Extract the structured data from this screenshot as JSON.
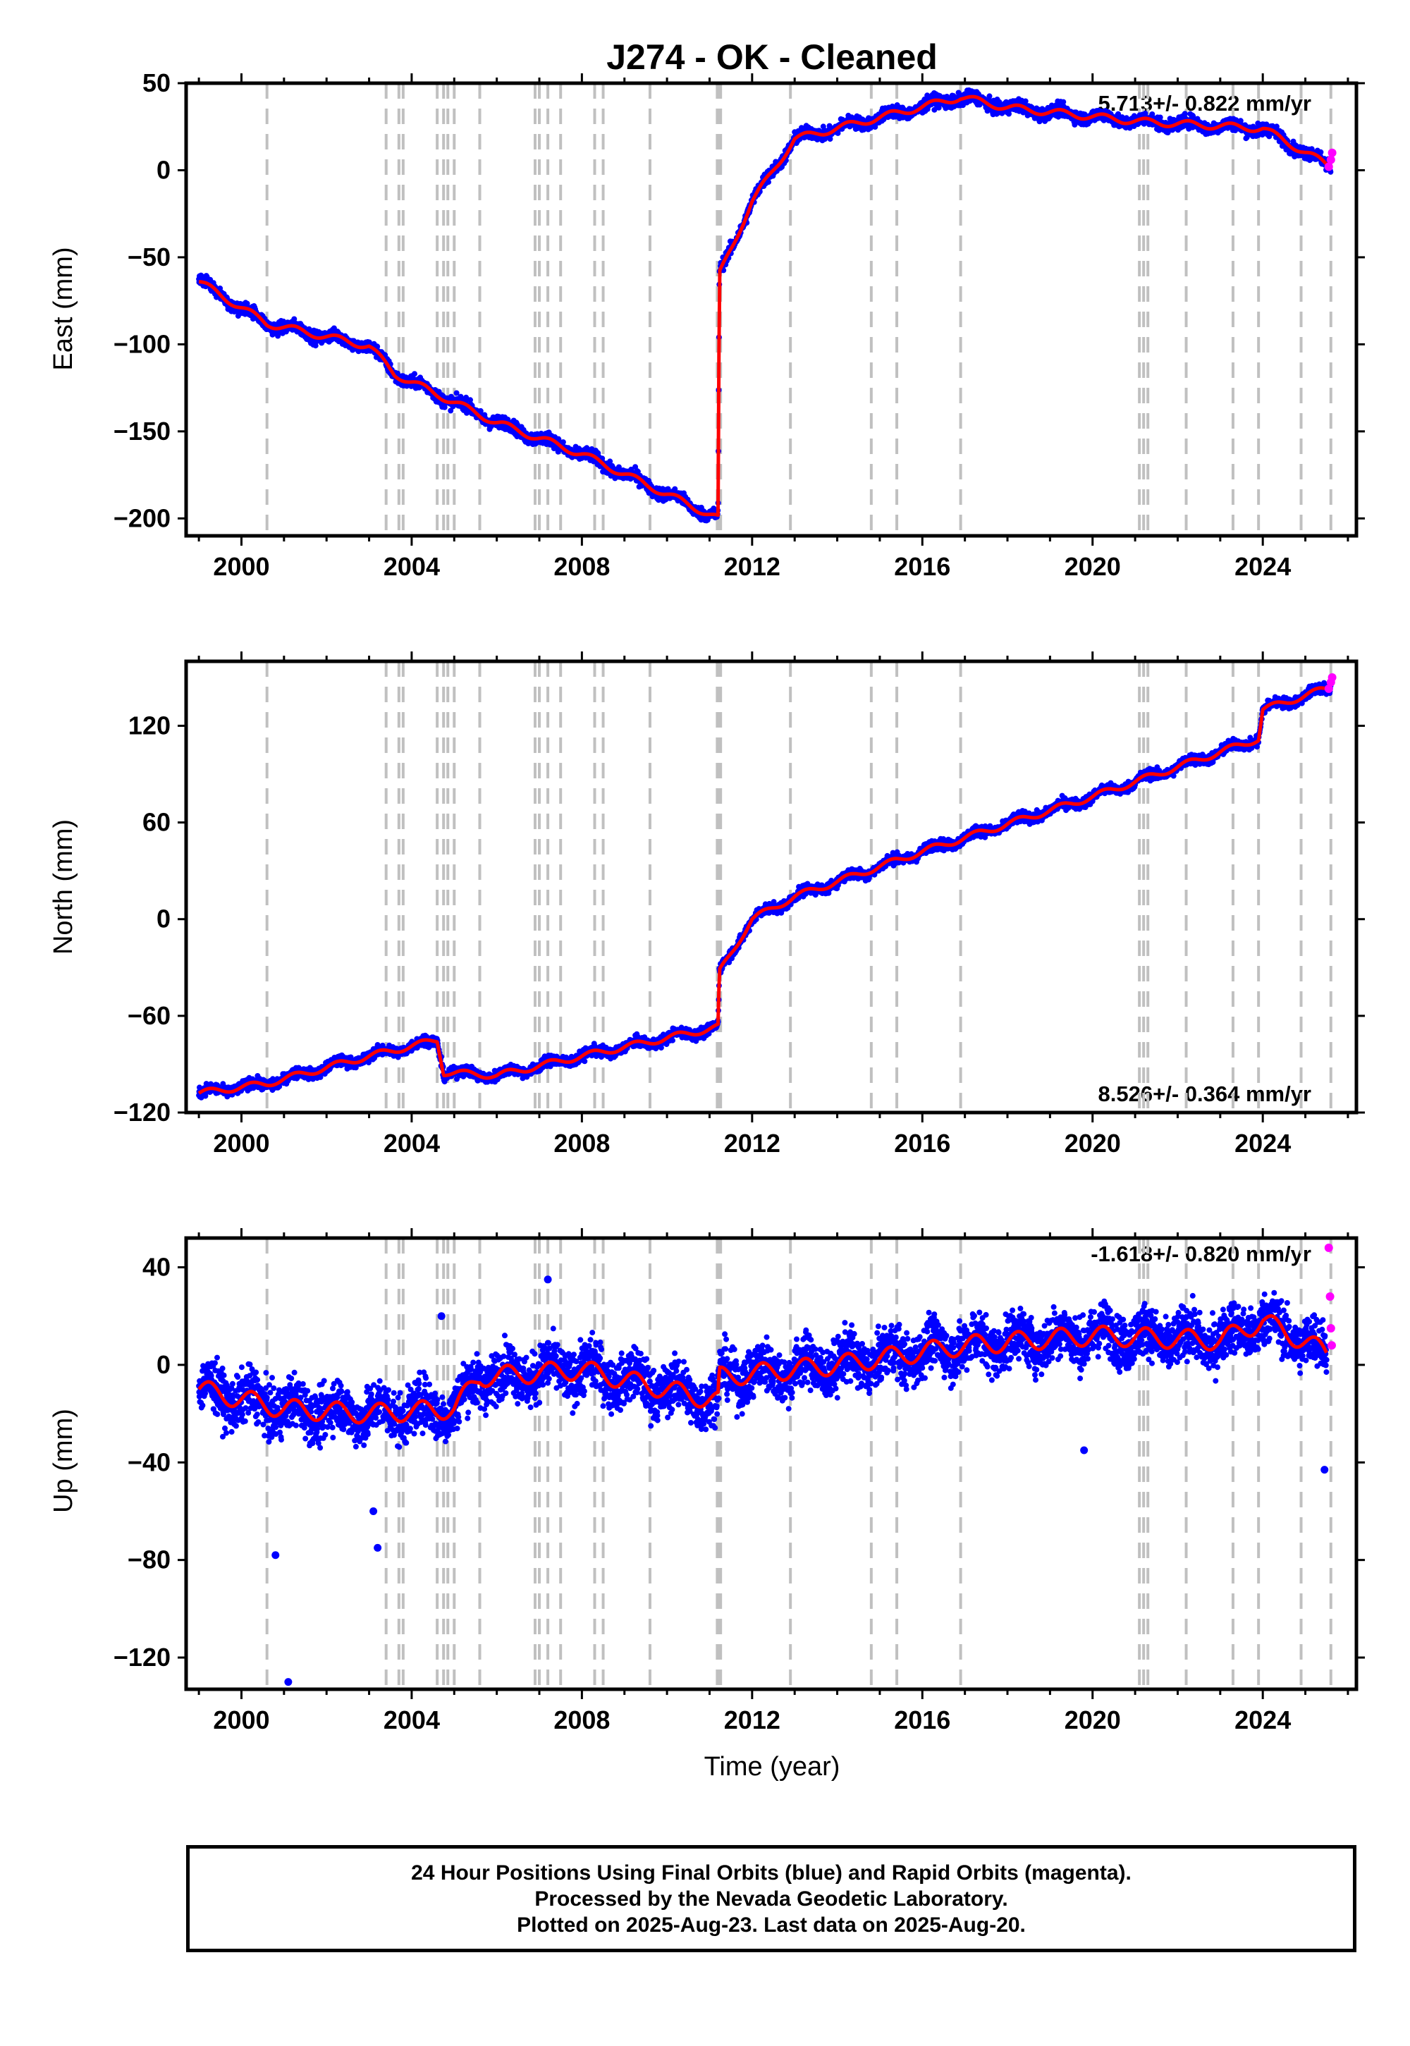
{
  "chart_data": [
    {
      "type": "scatter",
      "title": "J274  - OK - Cleaned",
      "ylabel": "East (mm)",
      "xlabel": "",
      "xlim": [
        1998.7,
        2026.2
      ],
      "ylim": [
        -210,
        50
      ],
      "yticks": [
        50,
        0,
        -50,
        -100,
        -150,
        -200
      ],
      "xticks": [
        2000,
        2004,
        2008,
        2012,
        2016,
        2020,
        2024
      ],
      "rate_label": "5.713+/- 0.822 mm/yr",
      "rate_position": "top-right",
      "grid": false,
      "series": [
        {
          "name": "",
          "role": "final-orbits",
          "color": "#0000ff",
          "x": [
            1999.0,
            2000.6,
            2003.0,
            2003.6,
            2006.0,
            2008.0,
            2011.2,
            2011.23,
            2012.0,
            2013.0,
            2016.9,
            2018.0,
            2021.1,
            2024.0,
            2025.6
          ],
          "y": [
            -64,
            -88,
            -101,
            -117,
            -145,
            -163,
            -200,
            -60,
            -18,
            18,
            42,
            36,
            28,
            24,
            2
          ]
        },
        {
          "name": "",
          "role": "rapid-orbits",
          "color": "#ff00ff",
          "x": [
            2025.55,
            2025.6,
            2025.63
          ],
          "y": [
            2,
            6,
            10
          ]
        },
        {
          "name": "",
          "role": "model",
          "color": "#ff0000",
          "x": [
            1999.0,
            2000.6,
            2003.0,
            2003.6,
            2006.0,
            2008.0,
            2011.2,
            2011.23,
            2012.0,
            2013.0,
            2016.9,
            2018.0,
            2021.1,
            2024.0,
            2025.6
          ],
          "y": [
            -64,
            -88,
            -101,
            -117,
            -145,
            -163,
            -200,
            -60,
            -18,
            18,
            42,
            36,
            28,
            24,
            2
          ]
        }
      ]
    },
    {
      "type": "scatter",
      "title": "",
      "ylabel": "North (mm)",
      "xlabel": "",
      "xlim": [
        1998.7,
        2026.2
      ],
      "ylim": [
        -120,
        160
      ],
      "yticks": [
        120,
        60,
        0,
        -60,
        -120
      ],
      "xticks": [
        2000,
        2004,
        2008,
        2012,
        2016,
        2020,
        2024
      ],
      "rate_label": "8.526+/- 0.364 mm/yr",
      "rate_position": "bottom-right",
      "grid": false,
      "series": [
        {
          "name": "",
          "role": "final-orbits",
          "color": "#0000ff",
          "x": [
            1999.0,
            2000.6,
            2003.0,
            2004.6,
            2004.75,
            2006.0,
            2008.0,
            2011.2,
            2011.23,
            2012.0,
            2013.0,
            2016.0,
            2020.0,
            2023.9,
            2024.0,
            2025.6
          ],
          "y": [
            -108,
            -102,
            -85,
            -75,
            -95,
            -97,
            -85,
            -67,
            -33,
            0,
            14,
            42,
            76,
            112,
            130,
            144
          ]
        },
        {
          "name": "",
          "role": "rapid-orbits",
          "color": "#ff00ff",
          "x": [
            2025.55,
            2025.6,
            2025.63
          ],
          "y": [
            143,
            147,
            150
          ]
        },
        {
          "name": "",
          "role": "model",
          "color": "#ff0000",
          "x": [
            1999.0,
            2000.6,
            2003.0,
            2004.6,
            2004.75,
            2006.0,
            2008.0,
            2011.2,
            2011.23,
            2012.0,
            2013.0,
            2016.0,
            2020.0,
            2023.9,
            2024.0,
            2025.6
          ],
          "y": [
            -108,
            -102,
            -85,
            -75,
            -95,
            -97,
            -85,
            -67,
            -33,
            0,
            14,
            42,
            76,
            112,
            130,
            144
          ]
        }
      ]
    },
    {
      "type": "scatter",
      "title": "",
      "ylabel": "Up (mm)",
      "xlabel": "Time (year)",
      "xlim": [
        1998.7,
        2026.2
      ],
      "ylim": [
        -133,
        52
      ],
      "yticks": [
        40,
        0,
        -40,
        -80,
        -120
      ],
      "xticks": [
        2000,
        2004,
        2008,
        2012,
        2016,
        2020,
        2024
      ],
      "rate_label": "-1.618+/- 0.820 mm/yr",
      "rate_position": "top-right",
      "grid": false,
      "series": [
        {
          "name": "",
          "role": "final-orbits",
          "color": "#0000ff",
          "x": [
            1999.0,
            2001.0,
            2003.0,
            2005.0,
            2005.6,
            2008.0,
            2011.2,
            2011.23,
            2014.0,
            2017.0,
            2020.0,
            2023.0,
            2024.0,
            2025.5
          ],
          "y": [
            -10,
            -18,
            -20,
            -18,
            -5,
            -2,
            -15,
            -5,
            0,
            8,
            12,
            10,
            18,
            5
          ]
        },
        {
          "name": "",
          "role": "rapid-orbits",
          "color": "#ff00ff",
          "x": [
            2025.55,
            2025.58,
            2025.6,
            2025.62
          ],
          "y": [
            48,
            28,
            15,
            8
          ]
        },
        {
          "name": "",
          "role": "model",
          "color": "#ff0000",
          "x": [
            1999.0,
            2001.0,
            2003.0,
            2005.0,
            2005.6,
            2008.0,
            2011.2,
            2011.23,
            2014.0,
            2017.0,
            2020.0,
            2023.0,
            2024.0,
            2025.5
          ],
          "y": [
            -10,
            -18,
            -20,
            -18,
            -5,
            -2,
            -15,
            -5,
            0,
            8,
            12,
            10,
            18,
            5
          ]
        }
      ],
      "outliers": {
        "x": [
          2000.8,
          2001.1,
          2003.1,
          2003.2,
          2004.7,
          2007.2,
          2019.8,
          2025.45
        ],
        "y": [
          -78,
          -130,
          -60,
          -75,
          20,
          35,
          -35,
          -43
        ]
      }
    }
  ],
  "event_lines": [
    2000.6,
    2003.4,
    2003.7,
    2003.8,
    2004.6,
    2004.75,
    2004.85,
    2005.0,
    2005.6,
    2006.9,
    2007.0,
    2007.2,
    2007.5,
    2008.3,
    2008.5,
    2009.6,
    2011.18,
    2011.22,
    2011.26,
    2012.9,
    2014.8,
    2015.4,
    2016.9,
    2021.1,
    2021.2,
    2021.3,
    2022.2,
    2023.3,
    2023.9,
    2024.9,
    2025.6
  ],
  "colors": {
    "final": "#0000ff",
    "rapid": "#ff00ff",
    "model": "#ff0000",
    "event": "#c0c0c0",
    "axis": "#000000"
  },
  "footer": {
    "line1": "24 Hour Positions Using Final Orbits (blue) and Rapid Orbits (magenta).",
    "line2": "Processed by the Nevada Geodetic Laboratory.",
    "line3": "Plotted on 2025-Aug-23. Last data on 2025-Aug-20."
  }
}
